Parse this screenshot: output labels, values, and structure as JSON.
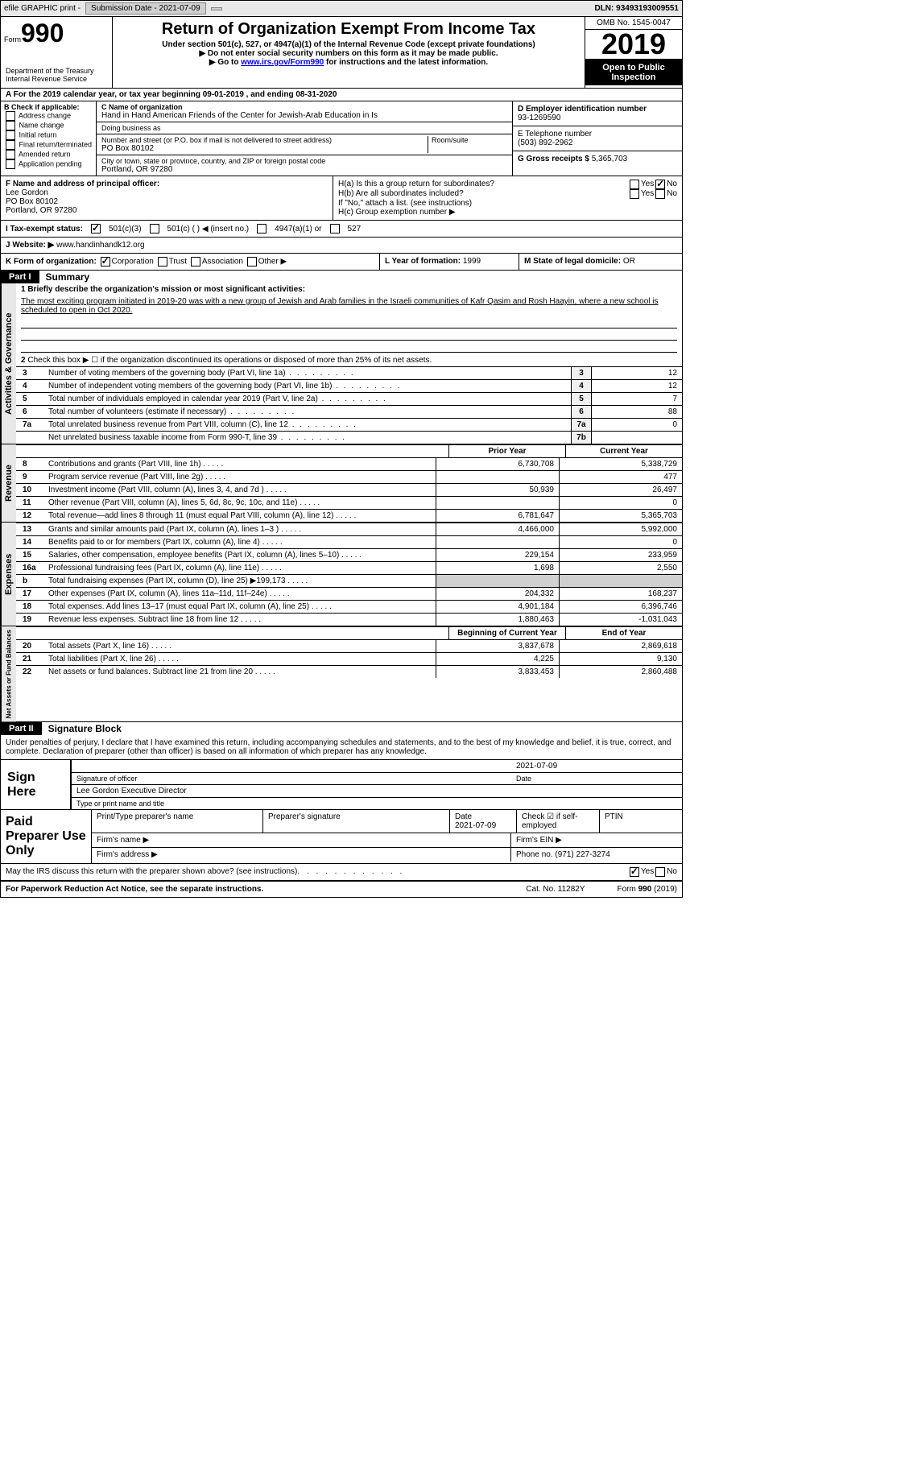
{
  "topbar": {
    "efile": "efile GRAPHIC print -",
    "submission": "Submission Date - 2021-07-09",
    "dln": "DLN: 93493193009551"
  },
  "header": {
    "form_word": "Form",
    "form_num": "990",
    "dept": "Department of the Treasury\nInternal Revenue Service",
    "title": "Return of Organization Exempt From Income Tax",
    "subtitle": "Under section 501(c), 527, or 4947(a)(1) of the Internal Revenue Code (except private foundations)",
    "note1": "▶ Do not enter social security numbers on this form as it may be made public.",
    "note2_pre": "▶ Go to ",
    "note2_link": "www.irs.gov/Form990",
    "note2_post": " for instructions and the latest information.",
    "omb": "OMB No. 1545-0047",
    "year": "2019",
    "public": "Open to Public Inspection"
  },
  "line_a": "For the 2019 calendar year, or tax year beginning 09-01-2019    , and ending 08-31-2020",
  "box_b": {
    "title": "B Check if applicable:",
    "opts": [
      "Address change",
      "Name change",
      "Initial return",
      "Final return/terminated",
      "Amended return",
      "Application pending"
    ]
  },
  "box_c": {
    "name_label": "C Name of organization",
    "name": "Hand in Hand American Friends of the Center for Jewish-Arab Education in Is",
    "dba_label": "Doing business as",
    "dba": "",
    "addr_label": "Number and street (or P.O. box if mail is not delivered to street address)",
    "room_label": "Room/suite",
    "addr": "PO Box 80102",
    "city_label": "City or town, state or province, country, and ZIP or foreign postal code",
    "city": "Portland, OR  97280"
  },
  "box_d": {
    "ein_label": "D Employer identification number",
    "ein": "93-1269590",
    "phone_label": "E Telephone number",
    "phone": "(503) 892-2962",
    "gross_label": "G Gross receipts $",
    "gross": "5,365,703"
  },
  "box_f": {
    "label": "F Name and address of principal officer:",
    "name": "Lee Gordon",
    "addr1": "PO Box 80102",
    "addr2": "Portland, OR  97280"
  },
  "box_h": {
    "ha_label": "H(a)  Is this a group return for subordinates?",
    "ha_yes": "Yes",
    "ha_no": "No",
    "hb_label": "H(b)  Are all subordinates included?",
    "hb_yes": "Yes",
    "hb_no": "No",
    "hb_note": "If \"No,\" attach a list. (see instructions)",
    "hc_label": "H(c)  Group exemption number ▶"
  },
  "row_i": {
    "label": "I   Tax-exempt status:",
    "opts": [
      "501(c)(3)",
      "501(c) (  ) ◀ (insert no.)",
      "4947(a)(1) or",
      "527"
    ]
  },
  "row_j": {
    "label": "J   Website: ▶",
    "value": "www.handinhandk12.org"
  },
  "row_k": {
    "k1": "K Form of organization:",
    "opts": [
      "Corporation",
      "Trust",
      "Association",
      "Other ▶"
    ],
    "k2_label": "L Year of formation:",
    "k2_val": "1999",
    "k3_label": "M State of legal domicile:",
    "k3_val": "OR"
  },
  "part1": {
    "tab": "Part I",
    "title": "Summary"
  },
  "gov": {
    "vtab": "Activities & Governance",
    "line1_label": "1   Briefly describe the organization's mission or most significant activities:",
    "line1_text": "The most exciting program initiated in 2019-20 was with a new group of Jewish and Arab families in the Israeli communities of Kafr Qasim and Rosh Haayin, where a new school is scheduled to open in Oct 2020.",
    "line2": "Check this box ▶ ☐  if the organization discontinued its operations or disposed of more than 25% of its net assets.",
    "rows": [
      {
        "n": "3",
        "d": "Number of voting members of the governing body (Part VI, line 1a)",
        "ln": "3",
        "v": "12"
      },
      {
        "n": "4",
        "d": "Number of independent voting members of the governing body (Part VI, line 1b)",
        "ln": "4",
        "v": "12"
      },
      {
        "n": "5",
        "d": "Total number of individuals employed in calendar year 2019 (Part V, line 2a)",
        "ln": "5",
        "v": "7"
      },
      {
        "n": "6",
        "d": "Total number of volunteers (estimate if necessary)",
        "ln": "6",
        "v": "88"
      },
      {
        "n": "7a",
        "d": "Total unrelated business revenue from Part VIII, column (C), line 12",
        "ln": "7a",
        "v": "0"
      },
      {
        "n": "",
        "d": "Net unrelated business taxable income from Form 990-T, line 39",
        "ln": "7b",
        "v": ""
      }
    ]
  },
  "rev": {
    "vtab": "Revenue",
    "h1": "Prior Year",
    "h2": "Current Year",
    "rows": [
      {
        "n": "8",
        "d": "Contributions and grants (Part VIII, line 1h)",
        "v1": "6,730,708",
        "v2": "5,338,729"
      },
      {
        "n": "9",
        "d": "Program service revenue (Part VIII, line 2g)",
        "v1": "",
        "v2": "477"
      },
      {
        "n": "10",
        "d": "Investment income (Part VIII, column (A), lines 3, 4, and 7d )",
        "v1": "50,939",
        "v2": "26,497"
      },
      {
        "n": "11",
        "d": "Other revenue (Part VIII, column (A), lines 5, 6d, 8c, 9c, 10c, and 11e)",
        "v1": "",
        "v2": "0"
      },
      {
        "n": "12",
        "d": "Total revenue—add lines 8 through 11 (must equal Part VIII, column (A), line 12)",
        "v1": "6,781,647",
        "v2": "5,365,703"
      }
    ]
  },
  "exp": {
    "vtab": "Expenses",
    "rows": [
      {
        "n": "13",
        "d": "Grants and similar amounts paid (Part IX, column (A), lines 1–3 )",
        "v1": "4,466,000",
        "v2": "5,992,000"
      },
      {
        "n": "14",
        "d": "Benefits paid to or for members (Part IX, column (A), line 4)",
        "v1": "",
        "v2": "0"
      },
      {
        "n": "15",
        "d": "Salaries, other compensation, employee benefits (Part IX, column (A), lines 5–10)",
        "v1": "229,154",
        "v2": "233,959"
      },
      {
        "n": "16a",
        "d": "Professional fundraising fees (Part IX, column (A), line 11e)",
        "v1": "1,698",
        "v2": "2,550"
      },
      {
        "n": "b",
        "d": "Total fundraising expenses (Part IX, column (D), line 25) ▶199,173",
        "v1": "SHADE",
        "v2": "SHADE"
      },
      {
        "n": "17",
        "d": "Other expenses (Part IX, column (A), lines 11a–11d, 11f–24e)",
        "v1": "204,332",
        "v2": "168,237"
      },
      {
        "n": "18",
        "d": "Total expenses. Add lines 13–17 (must equal Part IX, column (A), line 25)",
        "v1": "4,901,184",
        "v2": "6,396,746"
      },
      {
        "n": "19",
        "d": "Revenue less expenses. Subtract line 18 from line 12",
        "v1": "1,880,463",
        "v2": "-1,031,043"
      }
    ]
  },
  "net": {
    "vtab": "Net Assets or Fund Balances",
    "h1": "Beginning of Current Year",
    "h2": "End of Year",
    "rows": [
      {
        "n": "20",
        "d": "Total assets (Part X, line 16)",
        "v1": "3,837,678",
        "v2": "2,869,618"
      },
      {
        "n": "21",
        "d": "Total liabilities (Part X, line 26)",
        "v1": "4,225",
        "v2": "9,130"
      },
      {
        "n": "22",
        "d": "Net assets or fund balances. Subtract line 21 from line 20",
        "v1": "3,833,453",
        "v2": "2,860,488"
      }
    ]
  },
  "part2": {
    "tab": "Part II",
    "title": "Signature Block",
    "text": "Under penalties of perjury, I declare that I have examined this return, including accompanying schedules and statements, and to the best of my knowledge and belief, it is true, correct, and complete. Declaration of preparer (other than officer) is based on all information of which preparer has any knowledge.",
    "sign_here": "Sign Here",
    "sig_officer_hint": "Signature of officer",
    "sig_date": "2021-07-09",
    "date_hint": "Date",
    "officer_name": "Lee Gordon  Executive Director",
    "name_hint": "Type or print name and title"
  },
  "prep": {
    "label": "Paid Preparer Use Only",
    "h1": "Print/Type preparer's name",
    "h2": "Preparer's signature",
    "h3": "Date",
    "h3v": "2021-07-09",
    "h4": "Check ☑ if self-employed",
    "h5": "PTIN",
    "firm_name": "Firm's name   ▶",
    "firm_ein": "Firm's EIN ▶",
    "firm_addr": "Firm's address ▶",
    "phone_label": "Phone no.",
    "phone": "(971) 227-3274"
  },
  "discuss": {
    "text": "May the IRS discuss this return with the preparer shown above? (see instructions)",
    "yes": "Yes",
    "no": "No"
  },
  "footer": {
    "left": "For Paperwork Reduction Act Notice, see the separate instructions.",
    "mid": "Cat. No. 11282Y",
    "right": "Form 990 (2019)"
  }
}
